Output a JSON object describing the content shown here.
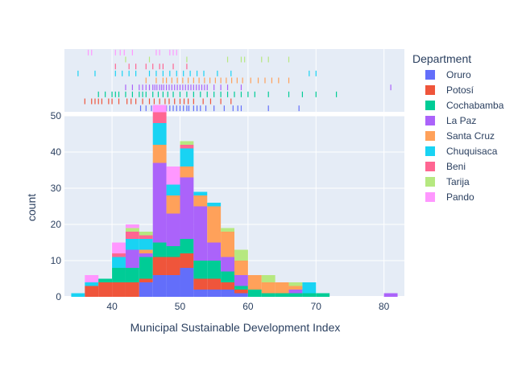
{
  "chart_data": {
    "type": "bar",
    "subtype": "stacked-histogram-with-rug",
    "xlabel": "Municipal Sustainable Development Index",
    "ylabel": "count",
    "xlim": [
      33,
      83
    ],
    "ylim": [
      0,
      50
    ],
    "x_ticks": [
      40,
      50,
      60,
      70,
      80
    ],
    "y_ticks": [
      0,
      10,
      20,
      30,
      40,
      50
    ],
    "grid": true,
    "bin_width": 2,
    "bin_starts": [
      34,
      36,
      38,
      40,
      42,
      44,
      46,
      48,
      50,
      52,
      54,
      56,
      58,
      60,
      62,
      64,
      66,
      68,
      70,
      72,
      74,
      76,
      78,
      80
    ],
    "legend": {
      "title": "Department",
      "placement": "right"
    },
    "series": [
      {
        "name": "Oruro",
        "color": "#636efa",
        "values": [
          0,
          0,
          0,
          0,
          0,
          4,
          6,
          6,
          8,
          2,
          2,
          2,
          1,
          0,
          0,
          0,
          0,
          0,
          0,
          0,
          0,
          0,
          0,
          0
        ]
      },
      {
        "name": "Potosí",
        "color": "#ef553b",
        "values": [
          0,
          3,
          4,
          4,
          4,
          1,
          5,
          5,
          4,
          3,
          3,
          2,
          1,
          0,
          0,
          0,
          0,
          0,
          0,
          0,
          0,
          0,
          0,
          0
        ]
      },
      {
        "name": "Cochabamba",
        "color": "#00cc96",
        "values": [
          0,
          0,
          1,
          4,
          4,
          6,
          4,
          3,
          4,
          5,
          5,
          3,
          1,
          2,
          1,
          1,
          1,
          1,
          1,
          0,
          0,
          0,
          0,
          0
        ]
      },
      {
        "name": "La Paz",
        "color": "#ab63fa",
        "values": [
          0,
          0,
          0,
          0,
          5,
          1,
          22,
          9,
          17,
          15,
          5,
          4,
          3,
          0,
          0,
          0,
          1,
          0,
          0,
          0,
          0,
          0,
          0,
          1
        ]
      },
      {
        "name": "Santa Cruz",
        "color": "#ffa15a",
        "values": [
          0,
          0,
          0,
          0,
          0,
          1,
          5,
          5,
          3,
          3,
          10,
          7,
          4,
          4,
          3,
          3,
          1,
          0,
          0,
          0,
          0,
          0,
          0,
          0
        ]
      },
      {
        "name": "Chuquisaca",
        "color": "#19d3f3",
        "values": [
          1,
          1,
          0,
          3,
          3,
          3,
          6,
          3,
          5,
          1,
          1,
          0,
          0,
          0,
          0,
          0,
          0,
          3,
          0,
          0,
          0,
          0,
          0,
          0
        ]
      },
      {
        "name": "Beni",
        "color": "#ff6692",
        "values": [
          0,
          0,
          0,
          1,
          2,
          1,
          3,
          0,
          1,
          0,
          0,
          0,
          0,
          0,
          0,
          0,
          0,
          0,
          0,
          0,
          0,
          0,
          0,
          0
        ]
      },
      {
        "name": "Tarija",
        "color": "#b6e880",
        "values": [
          0,
          0,
          0,
          0,
          1,
          1,
          0,
          0,
          1,
          0,
          0,
          1,
          3,
          0,
          2,
          0,
          1,
          0,
          0,
          0,
          0,
          0,
          0,
          0
        ]
      },
      {
        "name": "Pando",
        "color": "#ff97ff",
        "values": [
          0,
          2,
          0,
          3,
          1,
          0,
          2,
          5,
          0,
          0,
          0,
          0,
          0,
          0,
          0,
          0,
          0,
          0,
          0,
          0,
          0,
          0,
          0,
          0
        ]
      }
    ],
    "rug": [
      {
        "name": "Oruro",
        "color": "#636efa",
        "x": [
          44.2,
          45,
          45.8,
          46.5,
          47,
          47.4,
          48,
          48.5,
          49,
          49.5,
          50,
          50.5,
          51,
          51.3,
          52,
          52.5,
          53,
          53.8,
          55,
          56.5,
          57.8,
          58.5,
          59,
          63,
          67.5
        ]
      },
      {
        "name": "Potosí",
        "color": "#ef553b",
        "x": [
          36,
          37,
          37.5,
          38,
          38.5,
          39.5,
          40,
          41,
          42.2,
          42.8,
          43.5,
          44.5,
          45.5,
          46.2,
          47,
          47.8,
          48.4,
          49.2,
          50,
          50.6,
          51.2,
          52,
          53.4,
          54.5,
          56,
          57.5
        ]
      },
      {
        "name": "Cochabamba",
        "color": "#00cc96",
        "x": [
          38,
          39,
          40,
          40.5,
          41,
          42,
          43,
          44,
          44.5,
          45,
          46,
          46.8,
          47.5,
          48.2,
          49,
          50,
          51,
          52,
          53,
          54,
          55,
          56,
          57,
          58,
          59,
          60,
          61,
          63,
          66,
          68,
          70,
          73
        ]
      },
      {
        "name": "La Paz",
        "color": "#ab63fa",
        "x": [
          42,
          43,
          44,
          44.5,
          45,
          45.5,
          46,
          46.3,
          46.6,
          47,
          47.3,
          47.6,
          48,
          48.4,
          48.8,
          49.2,
          49.6,
          50,
          50.4,
          50.8,
          51.2,
          51.6,
          52,
          52.4,
          52.8,
          53.2,
          53.6,
          54,
          55,
          56,
          57,
          59,
          81
        ]
      },
      {
        "name": "Santa Cruz",
        "color": "#ffa15a",
        "x": [
          45,
          46.5,
          47.5,
          48,
          48.8,
          49.6,
          50.4,
          51.2,
          52,
          52.8,
          53.6,
          54.4,
          55.2,
          56,
          56.8,
          57.6,
          58.4,
          59.2,
          60.4,
          61.5,
          62.5,
          63.5,
          64.5,
          66
        ]
      },
      {
        "name": "Chuquisaca",
        "color": "#19d3f3",
        "x": [
          35,
          37.5,
          40.5,
          41.5,
          42.5,
          43.5,
          45.5,
          46.5,
          47.5,
          48.5,
          49.5,
          50.5,
          51.5,
          52.5,
          53.5,
          55.5,
          57.5,
          69,
          70
        ]
      },
      {
        "name": "Beni",
        "color": "#ff6692",
        "x": [
          40.5,
          42.5,
          43.5,
          45,
          46,
          47,
          47.5,
          49,
          51
        ]
      },
      {
        "name": "Tarija",
        "color": "#b6e880",
        "x": [
          42,
          45.5,
          51,
          57,
          59,
          59.5,
          62,
          63,
          66
        ]
      },
      {
        "name": "Pando",
        "color": "#ff97ff",
        "x": [
          36.5,
          37,
          40.5,
          41.2,
          41.8,
          43,
          46.5,
          47,
          48.5,
          49,
          49.5
        ]
      }
    ]
  }
}
